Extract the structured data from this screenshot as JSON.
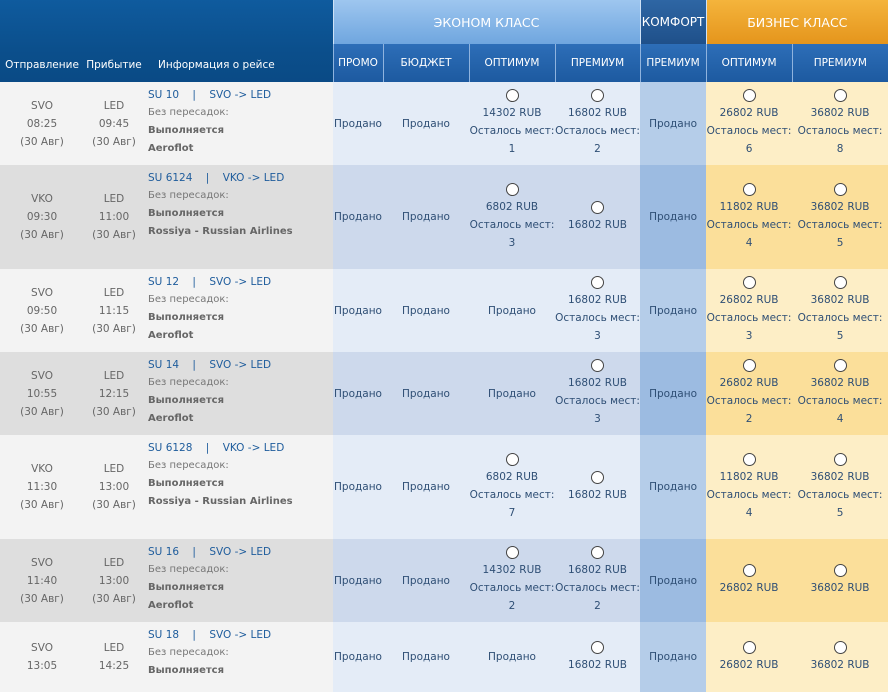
{
  "header": {
    "departure": "Отправление",
    "arrival": "Прибытие",
    "info": "Информация о рейсе",
    "economy_class": "ЭКОНОМ КЛАСС",
    "comfort_class": "КОМФОРТ",
    "business_class": "БИЗНЕС КЛАСС",
    "economy_fares": [
      "ПРОМО",
      "БЮДЖЕТ",
      "ОПТИМУМ",
      "ПРЕМИУМ"
    ],
    "comfort_fares": [
      "ПРЕМИУМ"
    ],
    "business_fares": [
      "ОПТИМУМ",
      "ПРЕМИУМ"
    ]
  },
  "labels": {
    "no_transfers": "Без пересадок:",
    "status": "Выполняется",
    "sold": "Продано",
    "seats_left": "Осталось мест:",
    "separator": "|"
  },
  "flights": [
    {
      "from": "SVO",
      "dep_time": "08:25",
      "dep_date": "(30 Авг)",
      "to": "LED",
      "arr_time": "09:45",
      "arr_date": "(30 Авг)",
      "flight": "SU 10",
      "route": "SVO -> LED",
      "carrier": "Aeroflot",
      "fares": [
        {
          "sold": true
        },
        {
          "sold": true
        },
        {
          "price": "14302 RUB",
          "seats": "1"
        },
        {
          "price": "16802 RUB",
          "seats": "2"
        },
        {
          "sold": true
        },
        {
          "price": "26802 RUB",
          "seats": "6"
        },
        {
          "price": "36802 RUB",
          "seats": "8"
        }
      ]
    },
    {
      "from": "VKO",
      "dep_time": "09:30",
      "dep_date": "(30 Авг)",
      "to": "LED",
      "arr_time": "11:00",
      "arr_date": "(30 Авг)",
      "flight": "SU 6124",
      "route": "VKO -> LED",
      "carrier": "Rossiya - Russian Airlines",
      "fares": [
        {
          "sold": true
        },
        {
          "sold": true
        },
        {
          "price": "6802 RUB",
          "seats": "3"
        },
        {
          "price": "16802 RUB"
        },
        {
          "sold": true
        },
        {
          "price": "11802 RUB",
          "seats": "4"
        },
        {
          "price": "36802 RUB",
          "seats": "5"
        }
      ]
    },
    {
      "from": "SVO",
      "dep_time": "09:50",
      "dep_date": "(30 Авг)",
      "to": "LED",
      "arr_time": "11:15",
      "arr_date": "(30 Авг)",
      "flight": "SU 12",
      "route": "SVO -> LED",
      "carrier": "Aeroflot",
      "fares": [
        {
          "sold": true
        },
        {
          "sold": true
        },
        {
          "sold": true
        },
        {
          "price": "16802 RUB",
          "seats": "3"
        },
        {
          "sold": true
        },
        {
          "price": "26802 RUB",
          "seats": "3"
        },
        {
          "price": "36802 RUB",
          "seats": "5"
        }
      ]
    },
    {
      "from": "SVO",
      "dep_time": "10:55",
      "dep_date": "(30 Авг)",
      "to": "LED",
      "arr_time": "12:15",
      "arr_date": "(30 Авг)",
      "flight": "SU 14",
      "route": "SVO -> LED",
      "carrier": "Aeroflot",
      "fares": [
        {
          "sold": true
        },
        {
          "sold": true
        },
        {
          "sold": true
        },
        {
          "price": "16802 RUB",
          "seats": "3"
        },
        {
          "sold": true
        },
        {
          "price": "26802 RUB",
          "seats": "2"
        },
        {
          "price": "36802 RUB",
          "seats": "4"
        }
      ]
    },
    {
      "from": "VKO",
      "dep_time": "11:30",
      "dep_date": "(30 Авг)",
      "to": "LED",
      "arr_time": "13:00",
      "arr_date": "(30 Авг)",
      "flight": "SU 6128",
      "route": "VKO -> LED",
      "carrier": "Rossiya - Russian Airlines",
      "fares": [
        {
          "sold": true
        },
        {
          "sold": true
        },
        {
          "price": "6802 RUB",
          "seats": "7"
        },
        {
          "price": "16802 RUB"
        },
        {
          "sold": true
        },
        {
          "price": "11802 RUB",
          "seats": "4"
        },
        {
          "price": "36802 RUB",
          "seats": "5"
        }
      ]
    },
    {
      "from": "SVO",
      "dep_time": "11:40",
      "dep_date": "(30 Авг)",
      "to": "LED",
      "arr_time": "13:00",
      "arr_date": "(30 Авг)",
      "flight": "SU 16",
      "route": "SVO -> LED",
      "carrier": "Aeroflot",
      "fares": [
        {
          "sold": true
        },
        {
          "sold": true
        },
        {
          "price": "14302 RUB",
          "seats": "2"
        },
        {
          "price": "16802 RUB",
          "seats": "2"
        },
        {
          "sold": true
        },
        {
          "price": "26802 RUB"
        },
        {
          "price": "36802 RUB"
        }
      ]
    },
    {
      "from": "SVO",
      "dep_time": "13:05",
      "dep_date": "",
      "to": "LED",
      "arr_time": "14:25",
      "arr_date": "",
      "flight": "SU 18",
      "route": "SVO -> LED",
      "carrier": "",
      "fares": [
        {
          "sold": true
        },
        {
          "sold": true
        },
        {
          "sold": true
        },
        {
          "price": "16802 RUB"
        },
        {
          "sold": true
        },
        {
          "price": "26802 RUB"
        },
        {
          "price": "36802 RUB"
        }
      ]
    }
  ]
}
